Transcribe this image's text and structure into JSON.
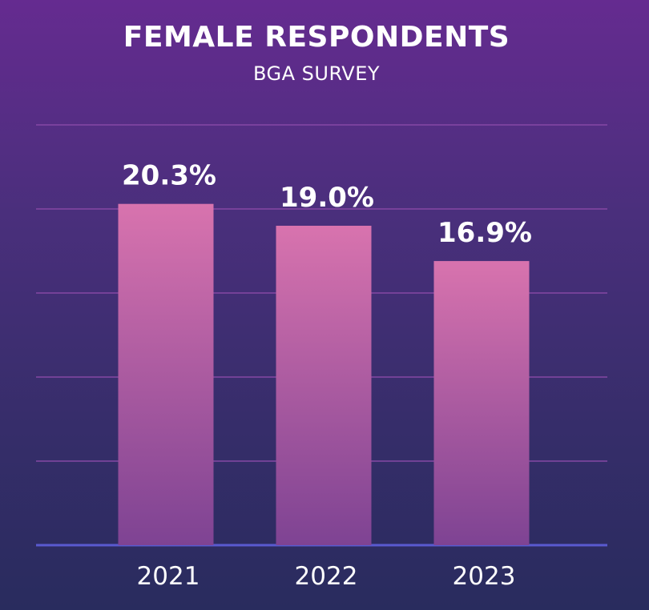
{
  "chart_data": {
    "type": "bar",
    "title": "FEMALE RESPONDENTS",
    "subtitle": "BGA SURVEY",
    "categories": [
      "2021",
      "2022",
      "2023"
    ],
    "values": [
      20.3,
      19.0,
      16.9
    ],
    "value_labels": [
      "20.3%",
      "19.0%",
      "16.9%"
    ],
    "ylim": [
      0,
      25
    ],
    "grid": true,
    "xlabel": "",
    "ylabel": ""
  },
  "colors": {
    "bar_top": "#d873ae",
    "bar_bottom": "#7e4393"
  }
}
